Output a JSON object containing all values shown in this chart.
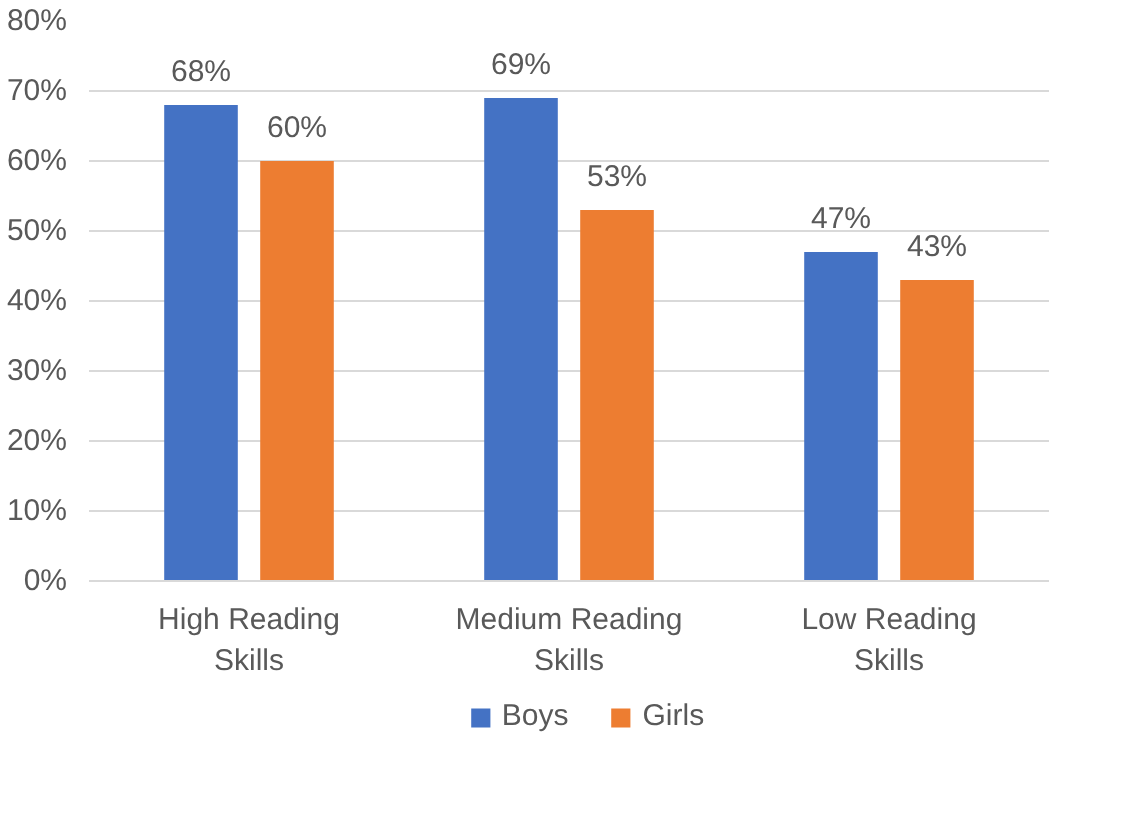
{
  "chart_data": {
    "type": "bar",
    "categories": [
      "High Reading Skills",
      "Medium Reading Skills",
      "Low Reading Skills"
    ],
    "series": [
      {
        "name": "Boys",
        "color": "#4472c4",
        "values": [
          68,
          69,
          47
        ],
        "value_labels": [
          "68%",
          "69%",
          "47%"
        ]
      },
      {
        "name": "Girls",
        "color": "#ed7d31",
        "values": [
          60,
          53,
          43
        ],
        "value_labels": [
          "60%",
          "53%",
          "43%"
        ]
      }
    ],
    "ylim": [
      0,
      80
    ],
    "yticks": [
      {
        "value": 0,
        "label": "0%"
      },
      {
        "value": 10,
        "label": "10%"
      },
      {
        "value": 20,
        "label": "20%"
      },
      {
        "value": 30,
        "label": "30%"
      },
      {
        "value": 40,
        "label": "40%"
      },
      {
        "value": 50,
        "label": "50%"
      },
      {
        "value": 60,
        "label": "60%"
      },
      {
        "value": 70,
        "label": "70%"
      },
      {
        "value": 80,
        "label": "80%"
      }
    ],
    "grid": "y",
    "legend": "bottom"
  }
}
